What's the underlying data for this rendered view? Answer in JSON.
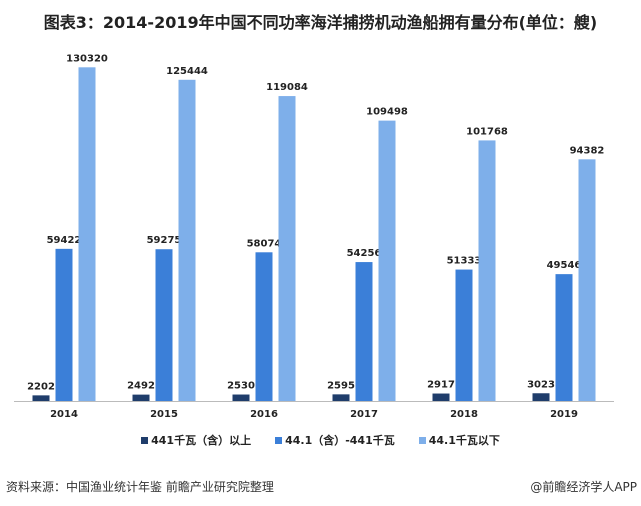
{
  "chart_data": {
    "type": "bar",
    "title": "图表3：2014-2019年中国不同功率海洋捕捞机动渔船拥有量分布(单位：艘)",
    "categories": [
      "2014",
      "2015",
      "2016",
      "2017",
      "2018",
      "2019"
    ],
    "series": [
      {
        "name": "441千瓦（含）以上",
        "color": "#1f3d6b",
        "values": [
          2202,
          2492,
          2530,
          2595,
          2917,
          3023
        ]
      },
      {
        "name": "44.1（含）-441千瓦",
        "color": "#3b7fd8",
        "values": [
          59422,
          59275,
          58074,
          54256,
          51333,
          49546
        ]
      },
      {
        "name": "44.1千瓦以下",
        "color": "#7eafea",
        "values": [
          130320,
          125444,
          119084,
          109498,
          101768,
          94382
        ]
      }
    ],
    "ylim": [
      0,
      132000
    ],
    "grid": false,
    "legend": "bottom"
  },
  "footer": {
    "source": "资料来源：中国渔业统计年鉴 前瞻产业研究院整理",
    "credit": "@前瞻经济学人APP"
  }
}
